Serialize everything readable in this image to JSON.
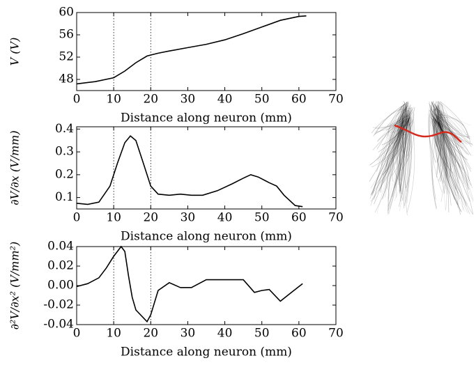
{
  "chart_data": [
    {
      "type": "line",
      "xlabel": "Distance along neuron (mm)",
      "ylabel": "V (V)",
      "color": "#000000",
      "xlim": [
        0,
        70
      ],
      "xticks": [
        0,
        10,
        20,
        30,
        40,
        50,
        60,
        70
      ],
      "ylim": [
        46,
        60
      ],
      "yticks": [
        48,
        52,
        56,
        60
      ],
      "vlines": [
        10,
        20
      ],
      "x": [
        0,
        5,
        10,
        13,
        16,
        19,
        22,
        25,
        30,
        35,
        40,
        45,
        50,
        55,
        60,
        62
      ],
      "values": [
        47.2,
        47.6,
        48.3,
        49.5,
        51,
        52.2,
        52.7,
        53.1,
        53.7,
        54.3,
        55.1,
        56.2,
        57.4,
        58.6,
        59.3,
        59.4
      ]
    },
    {
      "type": "line",
      "xlabel": "Distance along neuron (mm)",
      "ylabel": "∂V/∂x (V/mm)",
      "color": "#000000",
      "xlim": [
        0,
        70
      ],
      "xticks": [
        0,
        10,
        20,
        30,
        40,
        50,
        60,
        70
      ],
      "ylim": [
        0.05,
        0.41
      ],
      "yticks": [
        0.1,
        0.2,
        0.3,
        0.4
      ],
      "vlines": [
        10,
        20
      ],
      "x": [
        0,
        3,
        6,
        9,
        11,
        13,
        14.5,
        16,
        18,
        20,
        22,
        25,
        28,
        31,
        34,
        38,
        42,
        45,
        47,
        49,
        52,
        54,
        56,
        59,
        61
      ],
      "values": [
        0.075,
        0.07,
        0.08,
        0.15,
        0.25,
        0.34,
        0.37,
        0.35,
        0.25,
        0.15,
        0.115,
        0.11,
        0.115,
        0.11,
        0.11,
        0.13,
        0.16,
        0.185,
        0.2,
        0.19,
        0.165,
        0.15,
        0.11,
        0.065,
        0.06
      ]
    },
    {
      "type": "line",
      "xlabel": "Distance along neuron (mm)",
      "ylabel": "∂²V/∂x² (V/mm²)",
      "color": "#000000",
      "xlim": [
        0,
        70
      ],
      "xticks": [
        0,
        10,
        20,
        30,
        40,
        50,
        60,
        70
      ],
      "ylim": [
        -0.04,
        0.04
      ],
      "yticks": [
        -0.04,
        -0.02,
        {
          "value": 0,
          "label": "0.00"
        },
        0.02,
        0.04
      ],
      "vlines": [
        10,
        20
      ],
      "x": [
        0,
        3,
        6,
        8,
        10,
        12,
        13,
        14,
        15,
        16,
        19,
        20,
        22,
        25,
        28,
        31,
        35,
        40,
        45,
        48,
        50,
        52,
        55,
        58,
        61
      ],
      "values": [
        -0.001,
        0.002,
        0.008,
        0.018,
        0.03,
        0.04,
        0.035,
        0.01,
        -0.012,
        -0.025,
        -0.037,
        -0.03,
        -0.005,
        0.003,
        -0.002,
        -0.002,
        0.006,
        0.006,
        0.006,
        -0.007,
        -0.005,
        -0.004,
        -0.016,
        -0.007,
        0.002
      ]
    }
  ]
}
